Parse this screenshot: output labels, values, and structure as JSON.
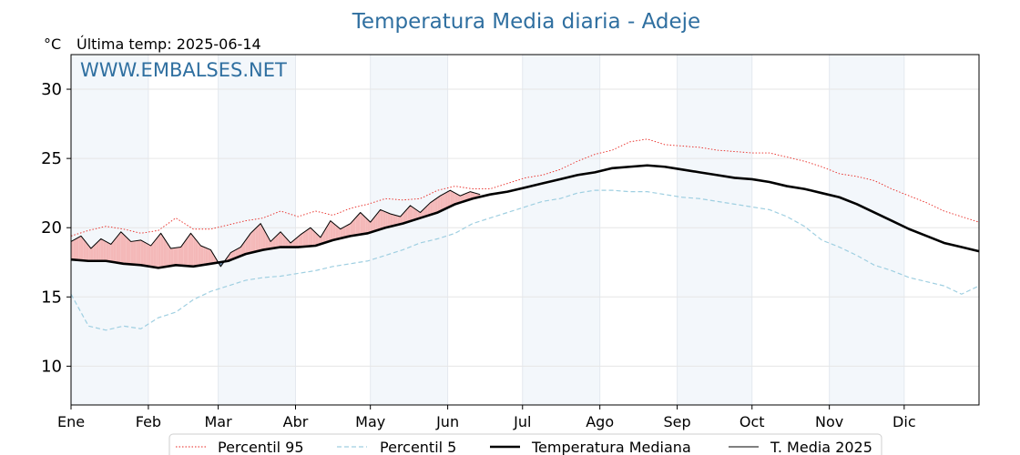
{
  "chart_data": {
    "type": "line",
    "title": "Temperatura Media diaria - Adeje",
    "ylabel": "°C",
    "last_temp_label": "Última temp: 2025-06-14",
    "watermark": "WWW.EMBALSES.NET",
    "ylim": [
      7.2,
      32.5
    ],
    "yticks": [
      10,
      15,
      20,
      25,
      30
    ],
    "month_labels": [
      "Ene",
      "Feb",
      "Mar",
      "Abr",
      "May",
      "Jun",
      "Jul",
      "Ago",
      "Sep",
      "Oct",
      "Nov",
      "Dic"
    ],
    "month_start_days": [
      1,
      32,
      60,
      91,
      121,
      152,
      182,
      213,
      244,
      274,
      305,
      335
    ],
    "grid": true,
    "legend_position": "bottom",
    "series": [
      {
        "name": "Percentil 95",
        "color": "#e8251f",
        "style": "dotted",
        "x": [
          1,
          8,
          15,
          22,
          29,
          36,
          43,
          50,
          57,
          64,
          71,
          78,
          85,
          92,
          99,
          106,
          113,
          120,
          127,
          134,
          141,
          148,
          155,
          162,
          169,
          176,
          183,
          190,
          197,
          204,
          211,
          218,
          225,
          232,
          239,
          246,
          253,
          260,
          267,
          274,
          281,
          288,
          295,
          302,
          309,
          316,
          323,
          330,
          337,
          344,
          351,
          358,
          365
        ],
        "values": [
          19.4,
          19.8,
          20.1,
          19.9,
          19.6,
          19.8,
          20.7,
          19.9,
          19.9,
          20.2,
          20.5,
          20.7,
          21.2,
          20.8,
          21.2,
          20.9,
          21.4,
          21.7,
          22.1,
          22.0,
          22.1,
          22.7,
          23.0,
          22.8,
          22.8,
          23.2,
          23.6,
          23.8,
          24.2,
          24.8,
          25.3,
          25.6,
          26.2,
          26.4,
          26.0,
          25.9,
          25.8,
          25.6,
          25.5,
          25.4,
          25.4,
          25.1,
          24.8,
          24.4,
          23.9,
          23.7,
          23.4,
          22.8,
          22.3,
          21.8,
          21.2,
          20.8,
          20.4
        ]
      },
      {
        "name": "Percentil 5",
        "color": "#9fcfe1",
        "style": "dashed",
        "x": [
          1,
          8,
          15,
          22,
          29,
          36,
          43,
          50,
          57,
          64,
          71,
          78,
          85,
          92,
          99,
          106,
          113,
          120,
          127,
          134,
          141,
          148,
          155,
          162,
          169,
          176,
          183,
          190,
          197,
          204,
          211,
          218,
          225,
          232,
          239,
          246,
          253,
          260,
          267,
          274,
          281,
          288,
          295,
          302,
          309,
          316,
          323,
          330,
          337,
          344,
          351,
          358,
          365
        ],
        "values": [
          15.2,
          12.9,
          12.6,
          12.9,
          12.7,
          13.5,
          13.9,
          14.8,
          15.4,
          15.8,
          16.2,
          16.4,
          16.5,
          16.7,
          16.9,
          17.2,
          17.4,
          17.6,
          18.0,
          18.4,
          18.9,
          19.2,
          19.6,
          20.3,
          20.7,
          21.1,
          21.5,
          21.9,
          22.1,
          22.5,
          22.7,
          22.7,
          22.6,
          22.6,
          22.4,
          22.2,
          22.1,
          21.9,
          21.7,
          21.5,
          21.3,
          20.8,
          20.1,
          19.1,
          18.6,
          18.0,
          17.3,
          16.9,
          16.4,
          16.1,
          15.8,
          15.2,
          15.8
        ]
      },
      {
        "name": "Temperatura Mediana",
        "color": "#000000",
        "style": "solid-thick",
        "x": [
          1,
          8,
          15,
          22,
          29,
          36,
          43,
          50,
          57,
          64,
          71,
          78,
          85,
          92,
          99,
          106,
          113,
          120,
          127,
          134,
          141,
          148,
          155,
          162,
          169,
          176,
          183,
          190,
          197,
          204,
          211,
          218,
          225,
          232,
          239,
          246,
          253,
          260,
          267,
          274,
          281,
          288,
          295,
          302,
          309,
          316,
          323,
          330,
          337,
          344,
          351,
          358,
          365
        ],
        "values": [
          17.7,
          17.6,
          17.6,
          17.4,
          17.3,
          17.1,
          17.3,
          17.2,
          17.4,
          17.6,
          18.1,
          18.4,
          18.6,
          18.6,
          18.7,
          19.1,
          19.4,
          19.6,
          20.0,
          20.3,
          20.7,
          21.1,
          21.7,
          22.1,
          22.4,
          22.6,
          22.9,
          23.2,
          23.5,
          23.8,
          24.0,
          24.3,
          24.4,
          24.5,
          24.4,
          24.2,
          24.0,
          23.8,
          23.6,
          23.5,
          23.3,
          23.0,
          22.8,
          22.5,
          22.2,
          21.7,
          21.1,
          20.5,
          19.9,
          19.4,
          18.9,
          18.6,
          18.3
        ]
      },
      {
        "name": "T. Media 2025",
        "color": "#000000",
        "style": "solid-thin",
        "x": [
          1,
          5,
          9,
          13,
          17,
          21,
          25,
          29,
          33,
          37,
          41,
          45,
          49,
          53,
          57,
          61,
          65,
          69,
          73,
          77,
          81,
          85,
          89,
          93,
          97,
          101,
          105,
          109,
          113,
          117,
          121,
          125,
          129,
          133,
          137,
          141,
          145,
          149,
          153,
          157,
          161,
          165
        ],
        "values": [
          19.0,
          19.4,
          18.5,
          19.2,
          18.8,
          19.7,
          19.0,
          19.1,
          18.7,
          19.6,
          18.5,
          18.6,
          19.6,
          18.7,
          18.4,
          17.2,
          18.2,
          18.6,
          19.6,
          20.3,
          19.0,
          19.7,
          18.9,
          19.5,
          20.0,
          19.3,
          20.5,
          19.9,
          20.3,
          21.1,
          20.4,
          21.3,
          21.0,
          20.8,
          21.6,
          21.1,
          21.8,
          22.3,
          22.7,
          22.3,
          22.6,
          22.4
        ]
      }
    ]
  }
}
